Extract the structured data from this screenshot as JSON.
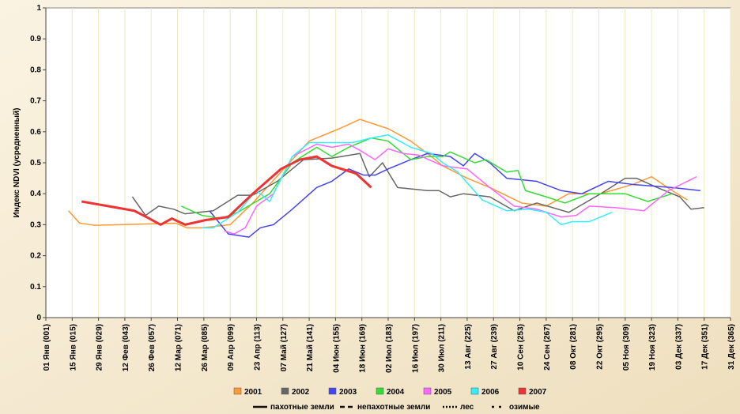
{
  "chart_data": {
    "type": "line",
    "y_label": "Индекс NDVI (усредненный)",
    "xlim": [
      1,
      365
    ],
    "ylim": [
      0,
      1
    ],
    "yticks": [
      0,
      0.1,
      0.2,
      0.3,
      0.4,
      0.5,
      0.6,
      0.7,
      0.8,
      0.9,
      1
    ],
    "xticks": [
      {
        "value": 1,
        "label": "01 Янв (001)"
      },
      {
        "value": 15,
        "label": "15 Янв (015)"
      },
      {
        "value": 29,
        "label": "29 Янв (029)"
      },
      {
        "value": 43,
        "label": "12 Фев (043)"
      },
      {
        "value": 57,
        "label": "26 Фев (057)"
      },
      {
        "value": 71,
        "label": "12 Мар (071)"
      },
      {
        "value": 85,
        "label": "26 Мар (085)"
      },
      {
        "value": 99,
        "label": "09 Апр (099)"
      },
      {
        "value": 113,
        "label": "23 Апр (113)"
      },
      {
        "value": 127,
        "label": "07 Май (127)"
      },
      {
        "value": 141,
        "label": "21 Май (141)"
      },
      {
        "value": 155,
        "label": "04 Июн (155)"
      },
      {
        "value": 169,
        "label": "18 Июн (169)"
      },
      {
        "value": 183,
        "label": "02 Июл (183)"
      },
      {
        "value": 197,
        "label": "16 Июл (197)"
      },
      {
        "value": 211,
        "label": "30 Июл (211)"
      },
      {
        "value": 225,
        "label": "13 Авг (225)"
      },
      {
        "value": 239,
        "label": "27 Авг (239)"
      },
      {
        "value": 253,
        "label": "10 Сен (253)"
      },
      {
        "value": 267,
        "label": "24 Сен (267)"
      },
      {
        "value": 281,
        "label": "08 Окт (281)"
      },
      {
        "value": 295,
        "label": "22 Окт (295)"
      },
      {
        "value": 309,
        "label": "05 Ноя (309)"
      },
      {
        "value": 323,
        "label": "19 Ноя (323)"
      },
      {
        "value": 337,
        "label": "03 Дек (337)"
      },
      {
        "value": 351,
        "label": "17 Дек (351)"
      },
      {
        "value": 365,
        "label": "31 Дек (365)"
      }
    ],
    "grid": true,
    "series": [
      {
        "name": "2001",
        "color": "#ff9933",
        "width": 1.5,
        "x": [
          13,
          19,
          27,
          70,
          76,
          84,
          99,
          111,
          126,
          141,
          157,
          168,
          183,
          195,
          206,
          212,
          225,
          237,
          254,
          267,
          279,
          296,
          313,
          323,
          334,
          342
        ],
        "values": [
          0.345,
          0.305,
          0.298,
          0.305,
          0.29,
          0.29,
          0.3,
          0.37,
          0.47,
          0.57,
          0.61,
          0.64,
          0.61,
          0.57,
          0.52,
          0.49,
          0.45,
          0.42,
          0.37,
          0.36,
          0.4,
          0.4,
          0.43,
          0.455,
          0.41,
          0.38
        ]
      },
      {
        "name": "2002",
        "color": "#666666",
        "width": 1.5,
        "x": [
          47,
          54,
          61,
          69,
          75,
          90,
          103,
          111,
          124,
          138,
          153,
          168,
          173,
          180,
          188,
          204,
          210,
          216,
          223,
          237,
          250,
          262,
          279,
          296,
          309,
          315,
          326,
          338,
          344,
          351
        ],
        "values": [
          0.39,
          0.33,
          0.36,
          0.35,
          0.335,
          0.345,
          0.395,
          0.395,
          0.44,
          0.51,
          0.515,
          0.53,
          0.455,
          0.5,
          0.42,
          0.41,
          0.41,
          0.39,
          0.4,
          0.39,
          0.345,
          0.37,
          0.34,
          0.4,
          0.45,
          0.45,
          0.42,
          0.39,
          0.35,
          0.355
        ]
      },
      {
        "name": "2003",
        "color": "#4444ee",
        "width": 1.5,
        "x": [
          88,
          98,
          109,
          115,
          122,
          132,
          145,
          153,
          162,
          170,
          176,
          183,
          195,
          204,
          216,
          223,
          229,
          237,
          246,
          262,
          275,
          286,
          300,
          313,
          334,
          349
        ],
        "values": [
          0.345,
          0.27,
          0.26,
          0.29,
          0.3,
          0.35,
          0.42,
          0.44,
          0.48,
          0.46,
          0.46,
          0.48,
          0.51,
          0.53,
          0.52,
          0.49,
          0.53,
          0.5,
          0.45,
          0.44,
          0.41,
          0.4,
          0.44,
          0.43,
          0.42,
          0.41
        ]
      },
      {
        "name": "2004",
        "color": "#33dd33",
        "width": 1.5,
        "x": [
          73,
          84,
          94,
          103,
          120,
          132,
          145,
          153,
          162,
          174,
          183,
          195,
          204,
          212,
          216,
          229,
          235,
          246,
          252,
          256,
          267,
          277,
          290,
          309,
          321,
          334
        ],
        "values": [
          0.36,
          0.33,
          0.32,
          0.34,
          0.4,
          0.5,
          0.55,
          0.52,
          0.55,
          0.58,
          0.57,
          0.51,
          0.52,
          0.52,
          0.535,
          0.5,
          0.51,
          0.47,
          0.475,
          0.41,
          0.39,
          0.37,
          0.4,
          0.4,
          0.375,
          0.4
        ]
      },
      {
        "name": "2005",
        "color": "#ff66ff",
        "width": 1.5,
        "x": [
          96,
          101,
          107,
          113,
          122,
          132,
          145,
          153,
          162,
          168,
          176,
          183,
          191,
          199,
          212,
          225,
          237,
          250,
          262,
          275,
          283,
          290,
          304,
          319,
          332,
          347
        ],
        "values": [
          0.28,
          0.27,
          0.29,
          0.36,
          0.4,
          0.52,
          0.56,
          0.55,
          0.56,
          0.54,
          0.51,
          0.545,
          0.53,
          0.525,
          0.49,
          0.48,
          0.42,
          0.36,
          0.35,
          0.325,
          0.33,
          0.36,
          0.355,
          0.345,
          0.41,
          0.455
        ]
      },
      {
        "name": "2006",
        "color": "#33eeff",
        "width": 1.5,
        "x": [
          84,
          90,
          103,
          113,
          120,
          132,
          141,
          153,
          164,
          174,
          183,
          195,
          206,
          212,
          220,
          233,
          246,
          258,
          267,
          275,
          281,
          290,
          302
        ],
        "values": [
          0.29,
          0.29,
          0.34,
          0.41,
          0.375,
          0.52,
          0.565,
          0.565,
          0.565,
          0.58,
          0.59,
          0.55,
          0.53,
          0.5,
          0.47,
          0.38,
          0.345,
          0.35,
          0.34,
          0.3,
          0.31,
          0.31,
          0.34
        ]
      },
      {
        "name": "2007",
        "color": "#ee3333",
        "width": 3,
        "x": [
          20,
          48,
          56,
          62,
          68,
          75,
          86,
          98,
          111,
          126,
          136,
          145,
          153,
          166,
          174
        ],
        "values": [
          0.375,
          0.345,
          0.32,
          0.3,
          0.32,
          0.3,
          0.315,
          0.325,
          0.4,
          0.48,
          0.51,
          0.52,
          0.49,
          0.465,
          0.42
        ]
      }
    ],
    "style_legend": [
      {
        "label": "пахотные земли",
        "dash": "none"
      },
      {
        "label": "непахотные земли",
        "dash": "6 4"
      },
      {
        "label": "лес",
        "dash": "2 2"
      },
      {
        "label": "озимые",
        "dash": "3 6"
      }
    ]
  }
}
